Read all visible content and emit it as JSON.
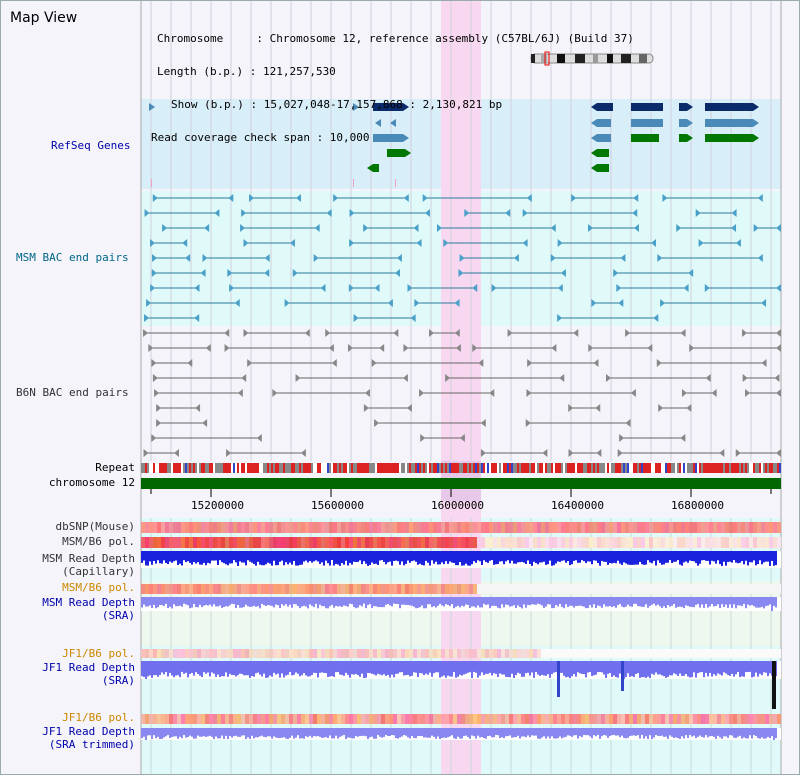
{
  "view": {
    "title": "Map View",
    "info": {
      "chromosome": "Chromosome     : Chromosome 12, reference assembly (C57BL/6J) (Build 37)",
      "length": "Length (b.p.) : 121,257,530",
      "show": "Show (b.p.) : 15,027,048-17,157,868 : 2,130,821 bp",
      "coverage": "Read coverage check span : 10,000"
    }
  },
  "tracks": {
    "refseq": "RefSeq Genes",
    "msm_bac": "MSM BAC end pairs",
    "b6n_bac": "B6N BAC end pairs",
    "repeat": "Repeat",
    "chromosome": "chromosome 12",
    "dbsnp": "dbSNP(Mouse)",
    "msm_b6_pol_a": "MSM/B6 pol.",
    "msm_read_depth_cap_1": "MSM Read Depth",
    "msm_read_depth_cap_2": "(Capillary)",
    "msm_b6_pol_b": "MSM/B6 pol.",
    "msm_read_depth_sra_1": "MSM Read Depth",
    "msm_read_depth_sra_2": "(SRA)",
    "jf1_b6_pol_a": "JF1/B6 pol.",
    "jf1_read_depth_sra_1": "JF1 Read Depth",
    "jf1_read_depth_sra_2": "(SRA)",
    "jf1_b6_pol_b": "JF1/B6 pol.",
    "jf1_read_depth_trim_1": "JF1 Read Depth",
    "jf1_read_depth_trim_2": "(SRA trimmed)"
  },
  "axis": {
    "ticks": [
      "15200000",
      "15600000",
      "16000000",
      "16400000",
      "16800000"
    ]
  },
  "colors": {
    "blue_label": "#0000aa",
    "teal_label": "#006688",
    "gray_label": "#333333",
    "orange_label": "#cc8800",
    "highlight": "#f8d8f0",
    "refseq_bg": "#d8eef8",
    "bac_bg": "#e0fafa",
    "gene_dark": "#0a2a6a",
    "gene_light": "#4a8ab8",
    "gene_green": "#007700",
    "chrom_bar": "#006600"
  }
}
